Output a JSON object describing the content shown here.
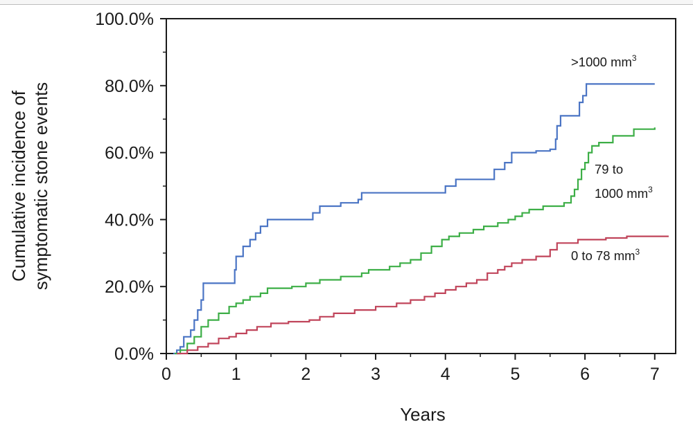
{
  "chart_data": {
    "type": "line",
    "step": true,
    "ylabel_lines": [
      "Cumulative incidence of",
      "symptomatic stone events"
    ],
    "xlabel": "Years",
    "xlim": [
      0,
      7.3
    ],
    "ylim": [
      0,
      100
    ],
    "x_ticks": [
      0,
      1,
      2,
      3,
      4,
      5,
      6,
      7
    ],
    "x_tick_labels": [
      "0",
      "1",
      "2",
      "3",
      "4",
      "5",
      "6",
      "7"
    ],
    "y_ticks": [
      0,
      20,
      40,
      60,
      80,
      100
    ],
    "y_tick_labels": [
      "0.0%",
      "20.0%",
      "40.0%",
      "60.0%",
      "80.0%",
      "100.0%"
    ],
    "grid": false,
    "legend": "inline labels at right of each curve",
    "series": [
      {
        "key": "large",
        "label_main": ">1000 mm",
        "label_sup": "3",
        "color": "#4a74c4",
        "points": [
          [
            0.1,
            0
          ],
          [
            0.15,
            1
          ],
          [
            0.2,
            2
          ],
          [
            0.25,
            5
          ],
          [
            0.35,
            7
          ],
          [
            0.4,
            10
          ],
          [
            0.45,
            13
          ],
          [
            0.5,
            16
          ],
          [
            0.53,
            21
          ],
          [
            0.93,
            21
          ],
          [
            0.98,
            25
          ],
          [
            1.0,
            29
          ],
          [
            1.1,
            32
          ],
          [
            1.2,
            34
          ],
          [
            1.28,
            36
          ],
          [
            1.35,
            38
          ],
          [
            1.45,
            40
          ],
          [
            2.1,
            42
          ],
          [
            2.2,
            44
          ],
          [
            2.5,
            45
          ],
          [
            2.75,
            46
          ],
          [
            2.8,
            48
          ],
          [
            4.0,
            50
          ],
          [
            4.15,
            52
          ],
          [
            4.7,
            55
          ],
          [
            4.85,
            57
          ],
          [
            4.95,
            60
          ],
          [
            5.3,
            60.5
          ],
          [
            5.5,
            61
          ],
          [
            5.58,
            64
          ],
          [
            5.6,
            68
          ],
          [
            5.65,
            71
          ],
          [
            5.92,
            75
          ],
          [
            5.97,
            77
          ],
          [
            6.02,
            80.5
          ],
          [
            7.0,
            80.5
          ]
        ]
      },
      {
        "key": "medium",
        "label_main": "79 to",
        "label_line2": "1000 mm",
        "label_sup": "3",
        "color": "#3cae46",
        "points": [
          [
            0.12,
            0
          ],
          [
            0.2,
            1
          ],
          [
            0.3,
            3
          ],
          [
            0.4,
            5
          ],
          [
            0.5,
            8
          ],
          [
            0.6,
            10
          ],
          [
            0.75,
            12
          ],
          [
            0.9,
            14
          ],
          [
            1.0,
            15
          ],
          [
            1.1,
            16
          ],
          [
            1.2,
            17
          ],
          [
            1.35,
            18
          ],
          [
            1.45,
            19.5
          ],
          [
            1.8,
            20
          ],
          [
            2.0,
            21
          ],
          [
            2.2,
            22
          ],
          [
            2.5,
            23
          ],
          [
            2.8,
            24
          ],
          [
            2.9,
            25
          ],
          [
            3.2,
            26
          ],
          [
            3.35,
            27
          ],
          [
            3.5,
            28
          ],
          [
            3.65,
            30
          ],
          [
            3.8,
            32
          ],
          [
            3.95,
            34
          ],
          [
            4.05,
            35
          ],
          [
            4.2,
            36
          ],
          [
            4.4,
            37
          ],
          [
            4.55,
            38
          ],
          [
            4.75,
            39
          ],
          [
            4.9,
            40
          ],
          [
            5.0,
            41
          ],
          [
            5.1,
            42
          ],
          [
            5.2,
            43
          ],
          [
            5.4,
            44
          ],
          [
            5.7,
            45
          ],
          [
            5.8,
            47
          ],
          [
            5.85,
            49
          ],
          [
            5.9,
            52
          ],
          [
            5.95,
            55
          ],
          [
            6.0,
            57
          ],
          [
            6.05,
            60
          ],
          [
            6.1,
            62
          ],
          [
            6.2,
            63
          ],
          [
            6.4,
            65
          ],
          [
            6.7,
            67
          ],
          [
            7.0,
            67.5
          ]
        ]
      },
      {
        "key": "small",
        "label_main": "0 to 78 mm",
        "label_sup": "3",
        "color": "#c0445a",
        "points": [
          [
            0.15,
            0
          ],
          [
            0.3,
            1
          ],
          [
            0.45,
            2
          ],
          [
            0.6,
            3
          ],
          [
            0.75,
            4.5
          ],
          [
            0.9,
            5
          ],
          [
            1.0,
            6
          ],
          [
            1.15,
            7
          ],
          [
            1.3,
            8
          ],
          [
            1.5,
            9
          ],
          [
            1.75,
            9.5
          ],
          [
            2.05,
            10
          ],
          [
            2.2,
            11
          ],
          [
            2.4,
            12
          ],
          [
            2.7,
            13
          ],
          [
            3.0,
            14
          ],
          [
            3.3,
            15
          ],
          [
            3.5,
            16
          ],
          [
            3.7,
            17
          ],
          [
            3.85,
            18
          ],
          [
            4.0,
            19
          ],
          [
            4.15,
            20
          ],
          [
            4.3,
            21
          ],
          [
            4.45,
            22
          ],
          [
            4.6,
            24
          ],
          [
            4.75,
            25
          ],
          [
            4.85,
            26
          ],
          [
            4.95,
            27
          ],
          [
            5.1,
            28
          ],
          [
            5.3,
            29
          ],
          [
            5.5,
            31
          ],
          [
            5.6,
            33
          ],
          [
            5.9,
            34
          ],
          [
            6.0,
            34
          ],
          [
            6.3,
            34.5
          ],
          [
            6.6,
            35
          ],
          [
            7.2,
            35
          ]
        ]
      }
    ]
  }
}
